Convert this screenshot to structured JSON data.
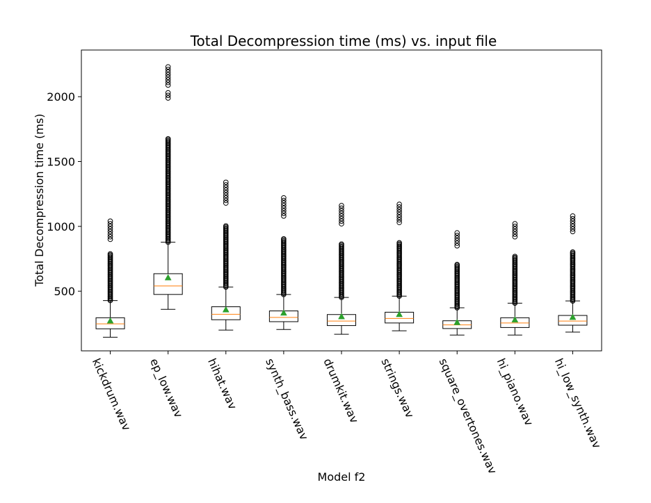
{
  "chart_data": {
    "type": "box",
    "title": "Total Decompression time (ms) vs. input file",
    "xlabel": "Model f2",
    "ylabel": "Total Decompression time (ms)",
    "ylim": [
      40,
      2360
    ],
    "yticks": [
      500,
      1000,
      1500,
      2000
    ],
    "grid": false,
    "colors": {
      "median": "#ff7f0e",
      "mean": "#2ca02c",
      "box": "#000000"
    },
    "categories": [
      "kickdrum.wav",
      "ep_low.wav",
      "hihat.wav",
      "synth_bass.wav",
      "drumkit.wav",
      "strings.wav",
      "square_overtones.wav",
      "hi_piano.wav",
      "hi_low_synth.wav"
    ],
    "boxes": [
      {
        "whisker_low": 145,
        "q1": 210,
        "median": 248,
        "q3": 295,
        "whisker_high": 428,
        "mean": 272,
        "outliers": {
          "dense": [
            [
              428,
              790
            ]
          ],
          "points": [
            900,
            920,
            940,
            960,
            980,
            1000,
            1020,
            1040
          ]
        }
      },
      {
        "whisker_low": 360,
        "q1": 475,
        "median": 540,
        "q3": 635,
        "whisker_high": 878,
        "mean": 605,
        "outliers": {
          "dense": [
            [
              878,
              1680
            ]
          ],
          "points": [
            1990,
            2010,
            2030,
            2090,
            2110,
            2130,
            2150,
            2170,
            2190,
            2210,
            2230
          ]
        }
      },
      {
        "whisker_low": 200,
        "q1": 280,
        "median": 322,
        "q3": 380,
        "whisker_high": 532,
        "mean": 358,
        "outliers": {
          "dense": [
            [
              532,
              1005
            ]
          ],
          "points": [
            1180,
            1200,
            1220,
            1240,
            1260,
            1280,
            1300,
            1320,
            1340
          ]
        }
      },
      {
        "whisker_low": 205,
        "q1": 265,
        "median": 298,
        "q3": 348,
        "whisker_high": 475,
        "mean": 333,
        "outliers": {
          "dense": [
            [
              475,
              905
            ]
          ],
          "points": [
            1080,
            1100,
            1120,
            1140,
            1160,
            1180,
            1200,
            1220
          ]
        }
      },
      {
        "whisker_low": 168,
        "q1": 235,
        "median": 270,
        "q3": 320,
        "whisker_high": 452,
        "mean": 305,
        "outliers": {
          "dense": [
            [
              452,
              865
            ]
          ],
          "points": [
            1020,
            1040,
            1060,
            1080,
            1100,
            1120,
            1140,
            1160
          ]
        }
      },
      {
        "whisker_low": 195,
        "q1": 255,
        "median": 290,
        "q3": 338,
        "whisker_high": 462,
        "mean": 322,
        "outliers": {
          "dense": [
            [
              462,
              880
            ]
          ],
          "points": [
            1030,
            1050,
            1070,
            1090,
            1110,
            1130,
            1150,
            1170
          ]
        }
      },
      {
        "whisker_low": 162,
        "q1": 212,
        "median": 240,
        "q3": 272,
        "whisker_high": 372,
        "mean": 260,
        "outliers": {
          "dense": [
            [
              372,
              710
            ]
          ],
          "points": [
            850,
            870,
            890,
            910,
            930,
            950
          ]
        }
      },
      {
        "whisker_low": 162,
        "q1": 220,
        "median": 255,
        "q3": 295,
        "whisker_high": 408,
        "mean": 280,
        "outliers": {
          "dense": [
            [
              408,
              770
            ]
          ],
          "points": [
            920,
            940,
            960,
            980,
            1000,
            1020
          ]
        }
      },
      {
        "whisker_low": 185,
        "q1": 238,
        "median": 270,
        "q3": 313,
        "whisker_high": 425,
        "mean": 300,
        "outliers": {
          "dense": [
            [
              425,
              810
            ]
          ],
          "points": [
            960,
            980,
            1000,
            1020,
            1040,
            1060,
            1080
          ]
        }
      }
    ]
  }
}
